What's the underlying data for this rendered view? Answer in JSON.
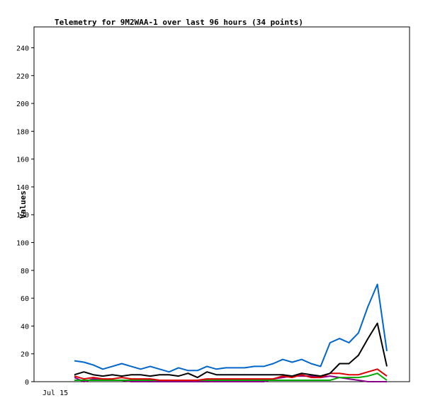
{
  "chart_data": {
    "type": "line",
    "title": "Telemetry for 9M2WAA-1 over last 96 hours (34 points)",
    "xlabel": "",
    "ylabel": "Values",
    "x_tick_labels": [
      "Jul 15"
    ],
    "y_ticks": [
      0,
      20,
      40,
      60,
      80,
      100,
      120,
      140,
      160,
      180,
      200,
      220,
      240
    ],
    "ylim": [
      0,
      255
    ],
    "grid": false,
    "legend": "none",
    "x": [
      1,
      2,
      3,
      4,
      5,
      6,
      7,
      8,
      9,
      10,
      11,
      12,
      13,
      14,
      15,
      16,
      17,
      18,
      19,
      20,
      21,
      22,
      23,
      24,
      25,
      26,
      27,
      28,
      29,
      30,
      31,
      32,
      33,
      34
    ],
    "series": [
      {
        "color": "#0066cc",
        "values": [
          15,
          14,
          12,
          9,
          11,
          13,
          11,
          9,
          11,
          9,
          7,
          10,
          8,
          8,
          11,
          9,
          10,
          10,
          10,
          11,
          11,
          13,
          16,
          14,
          16,
          13,
          11,
          28,
          31,
          28,
          35,
          54,
          70,
          22
        ]
      },
      {
        "color": "#000000",
        "values": [
          5,
          7,
          5,
          4,
          5,
          4,
          5,
          5,
          4,
          5,
          5,
          4,
          6,
          3,
          7,
          5,
          5,
          5,
          5,
          5,
          5,
          5,
          5,
          4,
          6,
          5,
          4,
          6,
          13,
          13,
          19,
          31,
          42,
          11
        ]
      },
      {
        "color": "#dd0000",
        "values": [
          4,
          2,
          3,
          2,
          2,
          3,
          2,
          2,
          2,
          1,
          1,
          1,
          1,
          1,
          2,
          2,
          2,
          2,
          2,
          2,
          2,
          2,
          4,
          3,
          5,
          3,
          3,
          6,
          6,
          5,
          5,
          7,
          9,
          4
        ]
      },
      {
        "color": "#00aa00",
        "values": [
          1,
          1,
          1,
          1,
          1,
          1,
          1,
          1,
          1,
          1,
          1,
          1,
          1,
          1,
          1,
          1,
          1,
          1,
          1,
          1,
          1,
          1,
          1,
          1,
          1,
          1,
          1,
          1,
          3,
          3,
          3,
          4,
          6,
          1
        ]
      },
      {
        "color": "#880088",
        "values": [
          3,
          0,
          2,
          1,
          1,
          1,
          0,
          0,
          0,
          0,
          0,
          0,
          0,
          0,
          0,
          0,
          0,
          0,
          0,
          0,
          0,
          2,
          3,
          4,
          4,
          4,
          3,
          4,
          3,
          2,
          1,
          0,
          0,
          0
        ]
      }
    ]
  }
}
